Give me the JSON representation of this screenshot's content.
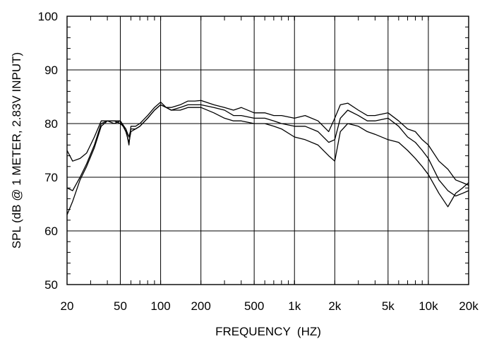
{
  "chart_data": {
    "type": "line",
    "xlabel": "FREQUENCY  (HZ)",
    "ylabel": "SPL (dB @ 1 METER, 2.83V INPUT)",
    "xscale": "log",
    "xlim": [
      20,
      20000
    ],
    "ylim": [
      50,
      100
    ],
    "grid": true,
    "legend": "none",
    "x_tick_labels": [
      {
        "value": 20,
        "label": "20"
      },
      {
        "value": 50,
        "label": "50"
      },
      {
        "value": 100,
        "label": "100"
      },
      {
        "value": 200,
        "label": "200"
      },
      {
        "value": 500,
        "label": "500"
      },
      {
        "value": 1000,
        "label": "1k"
      },
      {
        "value": 2000,
        "label": "2k"
      },
      {
        "value": 5000,
        "label": "5k"
      },
      {
        "value": 10000,
        "label": "10k"
      },
      {
        "value": 20000,
        "label": "20k"
      }
    ],
    "y_ticks": [
      50,
      60,
      70,
      80,
      90,
      100
    ],
    "series": [
      {
        "x": [
          20,
          22,
          25,
          28,
          32,
          36,
          40,
          45,
          50,
          55,
          58,
          60,
          65,
          70,
          80,
          90,
          100,
          110,
          120,
          140,
          160,
          180,
          200,
          250,
          300,
          350,
          400,
          500,
          600,
          700,
          800,
          1000,
          1200,
          1500,
          1800,
          2000,
          2200,
          2500,
          3000,
          3500,
          4000,
          5000,
          6000,
          7000,
          8000,
          9000,
          10000,
          12000,
          14000,
          16000,
          18000,
          20000
        ],
        "values": [
          75.0,
          73.0,
          73.5,
          74.5,
          77.5,
          80.5,
          80.5,
          80.5,
          80.5,
          79.0,
          76.0,
          79.5,
          79.5,
          80.0,
          81.5,
          83.0,
          84.0,
          83.0,
          83.0,
          83.5,
          84.2,
          84.2,
          84.3,
          83.5,
          83.0,
          82.5,
          83.0,
          82.0,
          82.0,
          81.5,
          81.5,
          81.0,
          81.5,
          80.5,
          78.5,
          81.0,
          83.5,
          83.8,
          82.5,
          81.5,
          81.5,
          82.0,
          80.5,
          79.0,
          78.5,
          77.0,
          76.0,
          73.0,
          71.5,
          69.5,
          69.0,
          68.5
        ]
      },
      {
        "x": [
          20,
          22,
          25,
          28,
          32,
          36,
          40,
          45,
          50,
          55,
          58,
          60,
          65,
          70,
          80,
          90,
          100,
          110,
          120,
          140,
          160,
          180,
          200,
          250,
          300,
          350,
          400,
          500,
          600,
          700,
          800,
          1000,
          1200,
          1500,
          1800,
          2000,
          2200,
          2500,
          3000,
          3500,
          4000,
          5000,
          6000,
          7000,
          8000,
          9000,
          10000,
          12000,
          14000,
          16000,
          18000,
          20000
        ],
        "values": [
          68.0,
          67.5,
          70.0,
          72.5,
          76.0,
          80.0,
          80.5,
          80.5,
          80.0,
          79.0,
          77.5,
          79.0,
          79.0,
          79.5,
          81.0,
          82.5,
          83.5,
          83.0,
          82.5,
          83.0,
          83.5,
          83.5,
          83.5,
          83.0,
          82.5,
          81.5,
          81.5,
          81.0,
          81.0,
          80.5,
          80.0,
          79.5,
          79.5,
          78.5,
          76.5,
          77.0,
          81.0,
          82.5,
          81.5,
          80.5,
          80.5,
          81.0,
          79.5,
          77.5,
          76.5,
          75.0,
          73.5,
          69.5,
          67.5,
          66.5,
          67.0,
          67.5
        ]
      },
      {
        "x": [
          20,
          22,
          25,
          28,
          32,
          36,
          40,
          45,
          50,
          55,
          58,
          60,
          65,
          70,
          80,
          90,
          100,
          110,
          120,
          140,
          160,
          180,
          200,
          250,
          300,
          350,
          400,
          500,
          600,
          700,
          800,
          1000,
          1200,
          1500,
          1800,
          2000,
          2200,
          2500,
          3000,
          3500,
          4000,
          5000,
          6000,
          7000,
          8000,
          9000,
          10000,
          12000,
          14000,
          16000,
          18000,
          20000
        ],
        "values": [
          63.0,
          65.5,
          69.5,
          72.0,
          75.5,
          79.5,
          80.5,
          80.0,
          80.5,
          78.5,
          76.5,
          78.5,
          79.0,
          79.5,
          81.0,
          82.5,
          83.5,
          83.0,
          82.5,
          82.5,
          83.0,
          83.0,
          83.0,
          82.0,
          81.0,
          80.5,
          80.5,
          80.0,
          80.0,
          79.5,
          79.0,
          77.5,
          77.0,
          76.0,
          74.0,
          73.0,
          78.5,
          80.0,
          79.5,
          78.5,
          78.0,
          77.0,
          76.5,
          75.0,
          73.5,
          72.0,
          70.5,
          67.0,
          64.5,
          67.0,
          68.0,
          69.0
        ]
      }
    ]
  }
}
